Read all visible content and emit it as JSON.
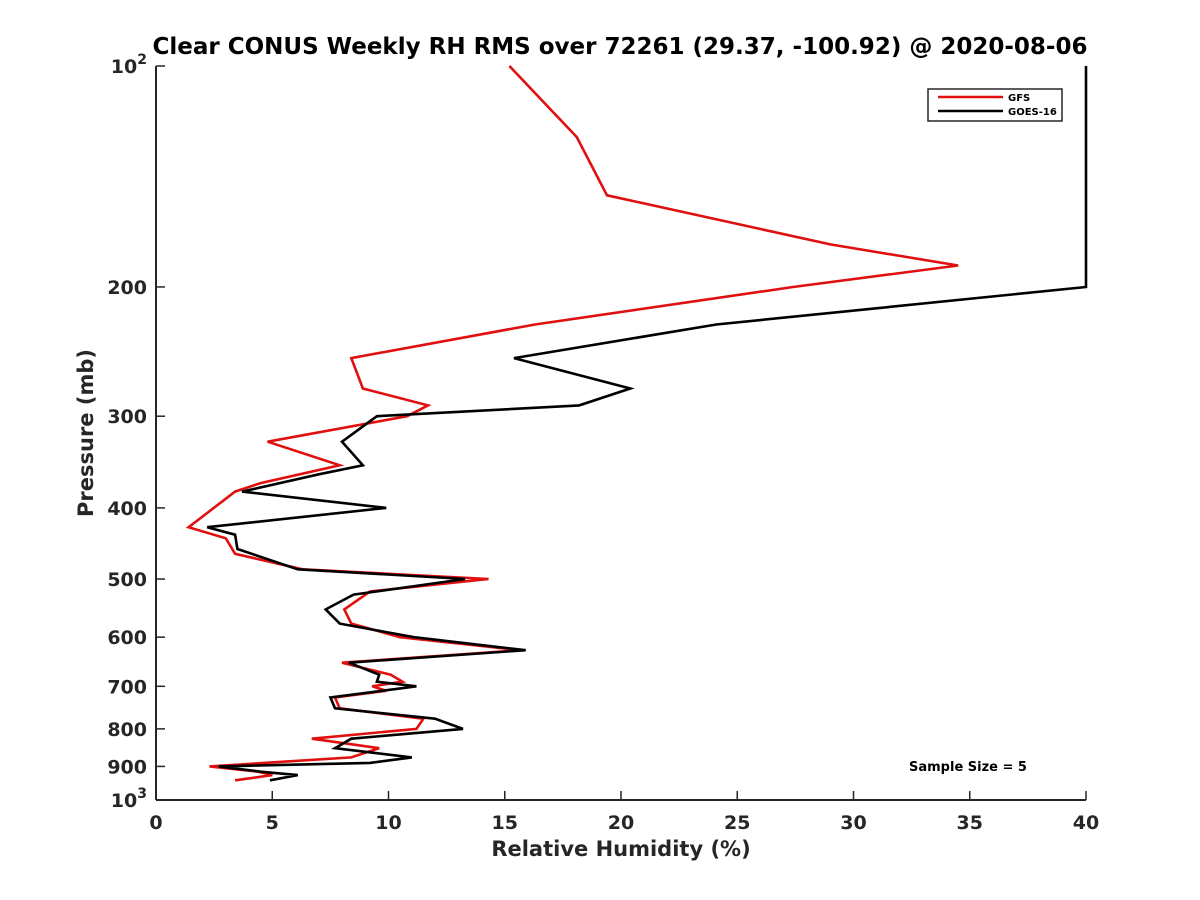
{
  "chart_data": {
    "type": "line",
    "title": "Clear CONUS Weekly RH RMS over 72261 (29.37, -100.92) @ 2020-08-06",
    "xlabel": "Relative Humidity (%)",
    "ylabel": "Pressure (mb)",
    "xlim": [
      0,
      40
    ],
    "ylim": [
      100,
      1000
    ],
    "yscale": "log",
    "y_reversed": true,
    "grid": false,
    "legend_position": "top-right",
    "x_ticks": [
      0,
      5,
      10,
      15,
      20,
      25,
      30,
      35,
      40
    ],
    "x_tick_labels": [
      "0",
      "5",
      "10",
      "15",
      "20",
      "25",
      "30",
      "35",
      "40"
    ],
    "y_ticks": [
      100,
      200,
      300,
      400,
      500,
      600,
      700,
      800,
      900,
      1000
    ],
    "y_tick_labels": [
      {
        "base": "10",
        "exp": "2"
      },
      {
        "base": "200",
        "exp": ""
      },
      {
        "base": "300",
        "exp": ""
      },
      {
        "base": "400",
        "exp": ""
      },
      {
        "base": "500",
        "exp": ""
      },
      {
        "base": "600",
        "exp": ""
      },
      {
        "base": "700",
        "exp": ""
      },
      {
        "base": "800",
        "exp": ""
      },
      {
        "base": "900",
        "exp": ""
      },
      {
        "base": "10",
        "exp": "3"
      }
    ],
    "series": [
      {
        "name": "GFS",
        "color": "#e01010",
        "points": [
          [
            15.2,
            100
          ],
          [
            18.1,
            125
          ],
          [
            19.4,
            150
          ],
          [
            29.0,
            175
          ],
          [
            34.5,
            187
          ],
          [
            27.4,
            200
          ],
          [
            16.3,
            225
          ],
          [
            8.4,
            250
          ],
          [
            8.9,
            275
          ],
          [
            11.7,
            290
          ],
          [
            10.8,
            300
          ],
          [
            4.8,
            325
          ],
          [
            7.9,
            350
          ],
          [
            4.5,
            370
          ],
          [
            3.4,
            380
          ],
          [
            1.4,
            425
          ],
          [
            3.0,
            440
          ],
          [
            3.4,
            462
          ],
          [
            6.3,
            485
          ],
          [
            14.3,
            500
          ],
          [
            9.2,
            520
          ],
          [
            8.1,
            550
          ],
          [
            8.4,
            575
          ],
          [
            10.5,
            600
          ],
          [
            15.7,
            625
          ],
          [
            8.0,
            650
          ],
          [
            10.1,
            675
          ],
          [
            10.6,
            690
          ],
          [
            9.3,
            700
          ],
          [
            9.9,
            710
          ],
          [
            7.7,
            725
          ],
          [
            7.9,
            750
          ],
          [
            11.5,
            775
          ],
          [
            11.2,
            800
          ],
          [
            6.7,
            825
          ],
          [
            9.6,
            850
          ],
          [
            8.4,
            875
          ],
          [
            2.3,
            900
          ],
          [
            4.4,
            915
          ],
          [
            5.0,
            925
          ],
          [
            3.4,
            940
          ]
        ]
      },
      {
        "name": "GOES-16",
        "color": "#000000",
        "points": [
          [
            40.0,
            100
          ],
          [
            40.0,
            200
          ],
          [
            24.1,
            225
          ],
          [
            15.4,
            250
          ],
          [
            20.4,
            275
          ],
          [
            18.2,
            290
          ],
          [
            9.5,
            300
          ],
          [
            8.0,
            325
          ],
          [
            8.9,
            350
          ],
          [
            7.0,
            360
          ],
          [
            3.7,
            380
          ],
          [
            9.9,
            400
          ],
          [
            2.2,
            425
          ],
          [
            3.4,
            435
          ],
          [
            3.5,
            455
          ],
          [
            6.1,
            485
          ],
          [
            13.3,
            500
          ],
          [
            8.5,
            525
          ],
          [
            7.3,
            550
          ],
          [
            7.9,
            575
          ],
          [
            11.1,
            600
          ],
          [
            15.9,
            625
          ],
          [
            8.3,
            650
          ],
          [
            9.6,
            675
          ],
          [
            9.5,
            690
          ],
          [
            11.2,
            700
          ],
          [
            7.5,
            725
          ],
          [
            7.7,
            750
          ],
          [
            12.0,
            775
          ],
          [
            13.2,
            800
          ],
          [
            8.4,
            825
          ],
          [
            7.7,
            850
          ],
          [
            11.0,
            875
          ],
          [
            9.2,
            890
          ],
          [
            2.7,
            900
          ],
          [
            4.5,
            915
          ],
          [
            6.1,
            925
          ],
          [
            4.9,
            940
          ]
        ]
      }
    ],
    "annotations": [
      {
        "text": "Sample Size = 5",
        "x": 36.8,
        "y": 900
      }
    ]
  },
  "legend": {
    "items": [
      {
        "label": "GFS",
        "color": "#e01010"
      },
      {
        "label": "GOES-16",
        "color": "#000000"
      }
    ]
  }
}
